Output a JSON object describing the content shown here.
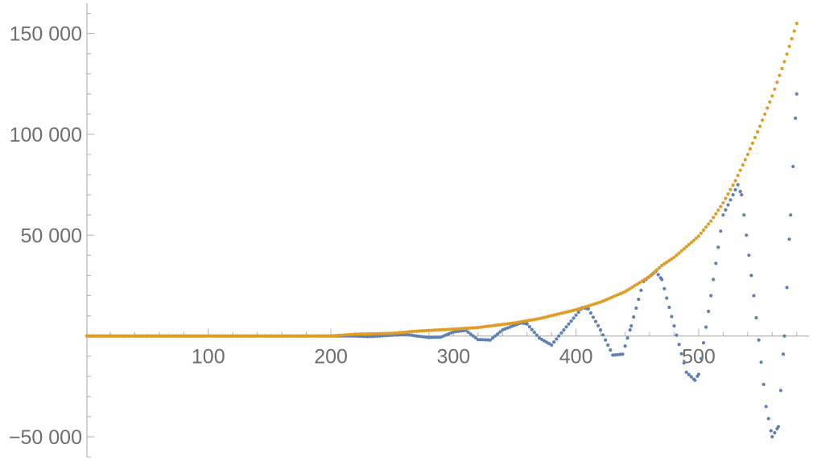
{
  "chart_data": {
    "type": "scatter",
    "title": "",
    "xlabel": "",
    "ylabel": "",
    "xlim": [
      1,
      590
    ],
    "ylim": [
      -60000,
      165000
    ],
    "grid": false,
    "legend": "none",
    "x_ticks": [
      {
        "value": 100,
        "label": "100"
      },
      {
        "value": 200,
        "label": "200"
      },
      {
        "value": 300,
        "label": "300"
      },
      {
        "value": 400,
        "label": "400"
      },
      {
        "value": 500,
        "label": "500"
      }
    ],
    "y_ticks": [
      {
        "value": -50000,
        "label": "−50 000"
      },
      {
        "value": 50000,
        "label": "50 000"
      },
      {
        "value": 100000,
        "label": "100 000"
      },
      {
        "value": 150000,
        "label": "150 000"
      }
    ],
    "series": [
      {
        "color": "#5e81b5",
        "x": [
          1,
          50,
          100,
          150,
          200,
          220,
          230,
          240,
          255,
          262,
          270,
          280,
          290,
          300,
          310,
          320,
          330,
          340,
          355,
          360,
          370,
          380,
          390,
          405,
          410,
          420,
          430,
          438,
          445,
          455,
          465,
          470,
          480,
          490,
          497,
          500,
          510,
          520,
          532,
          535,
          545,
          555,
          560,
          565,
          570,
          575,
          580
        ],
        "y": [
          0,
          0,
          0,
          0,
          0,
          0,
          -300,
          0,
          600,
          700,
          0,
          -700,
          -500,
          2000,
          2800,
          -1800,
          -2000,
          3000,
          6500,
          6000,
          -1000,
          -4500,
          3000,
          14000,
          13500,
          3000,
          -9500,
          -9000,
          5000,
          27000,
          32000,
          28000,
          5000,
          -18000,
          -22000,
          -19000,
          20000,
          60000,
          75000,
          70000,
          20000,
          -35000,
          -50000,
          -45000,
          0,
          60000,
          120000
        ]
      },
      {
        "color": "#e19c24",
        "x": [
          1,
          50,
          100,
          150,
          200,
          220,
          250,
          270,
          300,
          320,
          350,
          370,
          400,
          420,
          440,
          460,
          470,
          480,
          500,
          510,
          520,
          530,
          540,
          550,
          560,
          570,
          580
        ],
        "y": [
          0,
          0,
          0,
          0,
          0,
          900,
          1300,
          2400,
          3400,
          4200,
          6500,
          8600,
          13000,
          16800,
          22000,
          29500,
          35000,
          39000,
          49500,
          57000,
          66000,
          77000,
          90000,
          104000,
          119000,
          136000,
          155000
        ]
      }
    ]
  }
}
